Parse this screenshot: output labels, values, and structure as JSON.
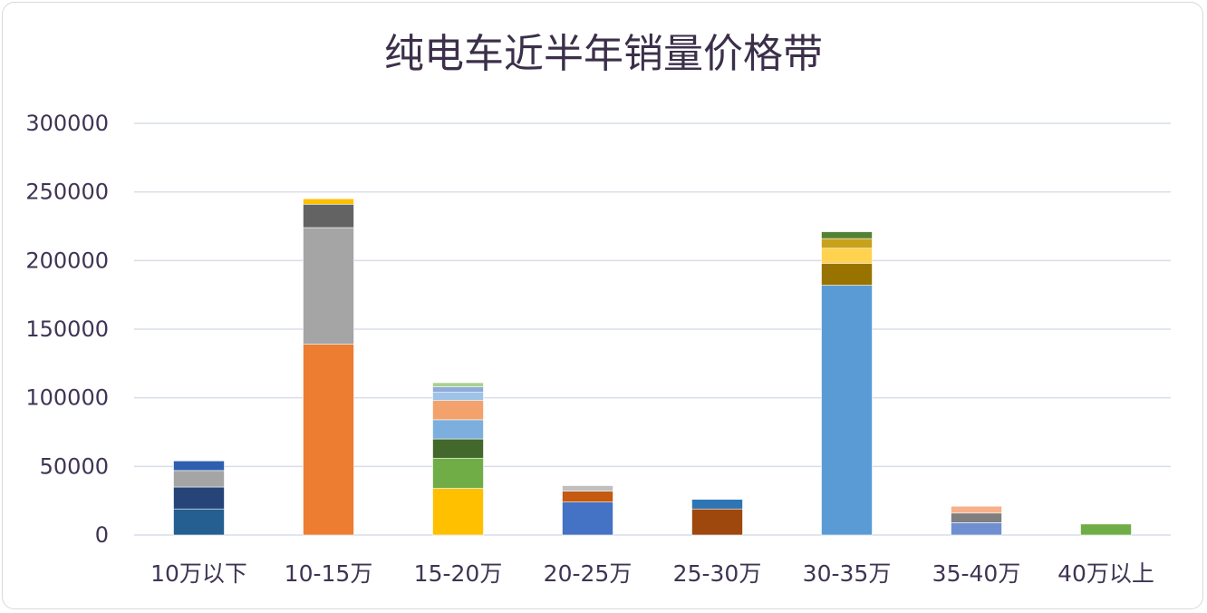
{
  "chart_data": {
    "type": "bar",
    "stacked": true,
    "title": "纯电车近半年销量价格带",
    "xlabel": "",
    "ylabel": "",
    "ylim": [
      0,
      300000
    ],
    "yticks": [
      0,
      50000,
      100000,
      150000,
      200000,
      250000,
      300000
    ],
    "ytick_labels": [
      "0",
      "50000",
      "100000",
      "150000",
      "200000",
      "250000",
      "300000"
    ],
    "grid": true,
    "legend": "none",
    "categories": [
      "10万以下",
      "10-15万",
      "15-20万",
      "20-25万",
      "25-30万",
      "30-35万",
      "35-40万",
      "40万以上"
    ],
    "stacks": [
      {
        "category": "10万以下",
        "segments": [
          {
            "value": 19000,
            "color": "#255e91"
          },
          {
            "value": 16000,
            "color": "#264478"
          },
          {
            "value": 12000,
            "color": "#a5a5a5"
          },
          {
            "value": 7000,
            "color": "#2e5fb0"
          }
        ]
      },
      {
        "category": "10-15万",
        "segments": [
          {
            "value": 139000,
            "color": "#ed7d31"
          },
          {
            "value": 85000,
            "color": "#a5a5a5"
          },
          {
            "value": 17000,
            "color": "#636363"
          },
          {
            "value": 4000,
            "color": "#ffc000"
          }
        ]
      },
      {
        "category": "15-20万",
        "segments": [
          {
            "value": 34000,
            "color": "#ffc000"
          },
          {
            "value": 22000,
            "color": "#70ad47"
          },
          {
            "value": 14000,
            "color": "#43682b"
          },
          {
            "value": 14000,
            "color": "#7cafdd"
          },
          {
            "value": 14000,
            "color": "#f4a26b"
          },
          {
            "value": 6000,
            "color": "#9dc3e6"
          },
          {
            "value": 4000,
            "color": "#8faadc"
          },
          {
            "value": 3000,
            "color": "#a9d18e"
          }
        ]
      },
      {
        "category": "20-25万",
        "segments": [
          {
            "value": 24000,
            "color": "#4472c4"
          },
          {
            "value": 8000,
            "color": "#c55a11"
          },
          {
            "value": 4000,
            "color": "#bfbfbf"
          }
        ]
      },
      {
        "category": "25-30万",
        "segments": [
          {
            "value": 19000,
            "color": "#9e480e"
          },
          {
            "value": 7000,
            "color": "#2e75b6"
          }
        ]
      },
      {
        "category": "30-35万",
        "segments": [
          {
            "value": 182000,
            "color": "#5b9bd5"
          },
          {
            "value": 16000,
            "color": "#997300"
          },
          {
            "value": 11000,
            "color": "#ffd34f"
          },
          {
            "value": 7000,
            "color": "#c9a21c"
          },
          {
            "value": 5000,
            "color": "#548235"
          }
        ]
      },
      {
        "category": "35-40万",
        "segments": [
          {
            "value": 9000,
            "color": "#6f8fd0"
          },
          {
            "value": 7000,
            "color": "#7f7f7f"
          },
          {
            "value": 5000,
            "color": "#f8b08a"
          }
        ]
      },
      {
        "category": "40万以上",
        "segments": [
          {
            "value": 8000,
            "color": "#70ad47"
          }
        ]
      }
    ],
    "colors": {
      "gridline": "#d9dde8",
      "axis_text": "#3f3454",
      "title": "#3b2f4a"
    }
  }
}
